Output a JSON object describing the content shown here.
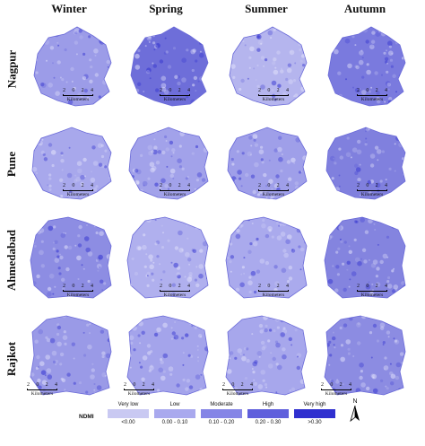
{
  "seasons": [
    "Winter",
    "Spring",
    "Summer",
    "Autumn"
  ],
  "cities": [
    "Nagpur",
    "Pune",
    "Ahmedabad",
    "Rajkot"
  ],
  "scalebar": {
    "ticks": [
      "2",
      "0",
      "2",
      "4"
    ],
    "unit": "Kilometers"
  },
  "legend": {
    "title": "NDMI",
    "classes": [
      {
        "label": "Very low",
        "range": "<0.00",
        "color": "#c9c9f2"
      },
      {
        "label": "Low",
        "range": "0.00 - 0.10",
        "color": "#a9a9ee"
      },
      {
        "label": "Moderate",
        "range": "0.10 - 0.20",
        "color": "#8585e6"
      },
      {
        "label": "High",
        "range": "0.20 - 0.30",
        "color": "#5f5fdc"
      },
      {
        "label": "Very high",
        "range": ">0.30",
        "color": "#2f2fcf"
      }
    ]
  },
  "north_label": "N",
  "panel_fill": [
    [
      "#9c9ce8",
      "#6e6ed9",
      "#b5b5ee",
      "#7a7ade"
    ],
    [
      "#a8a8ec",
      "#a2a2ea",
      "#9f9fe9",
      "#8080de"
    ],
    [
      "#8d8de3",
      "#b0b0ee",
      "#aaaaed",
      "#8484df"
    ],
    [
      "#9a9ae7",
      "#a4a4eb",
      "#a7a7ec",
      "#8c8ce2"
    ]
  ]
}
